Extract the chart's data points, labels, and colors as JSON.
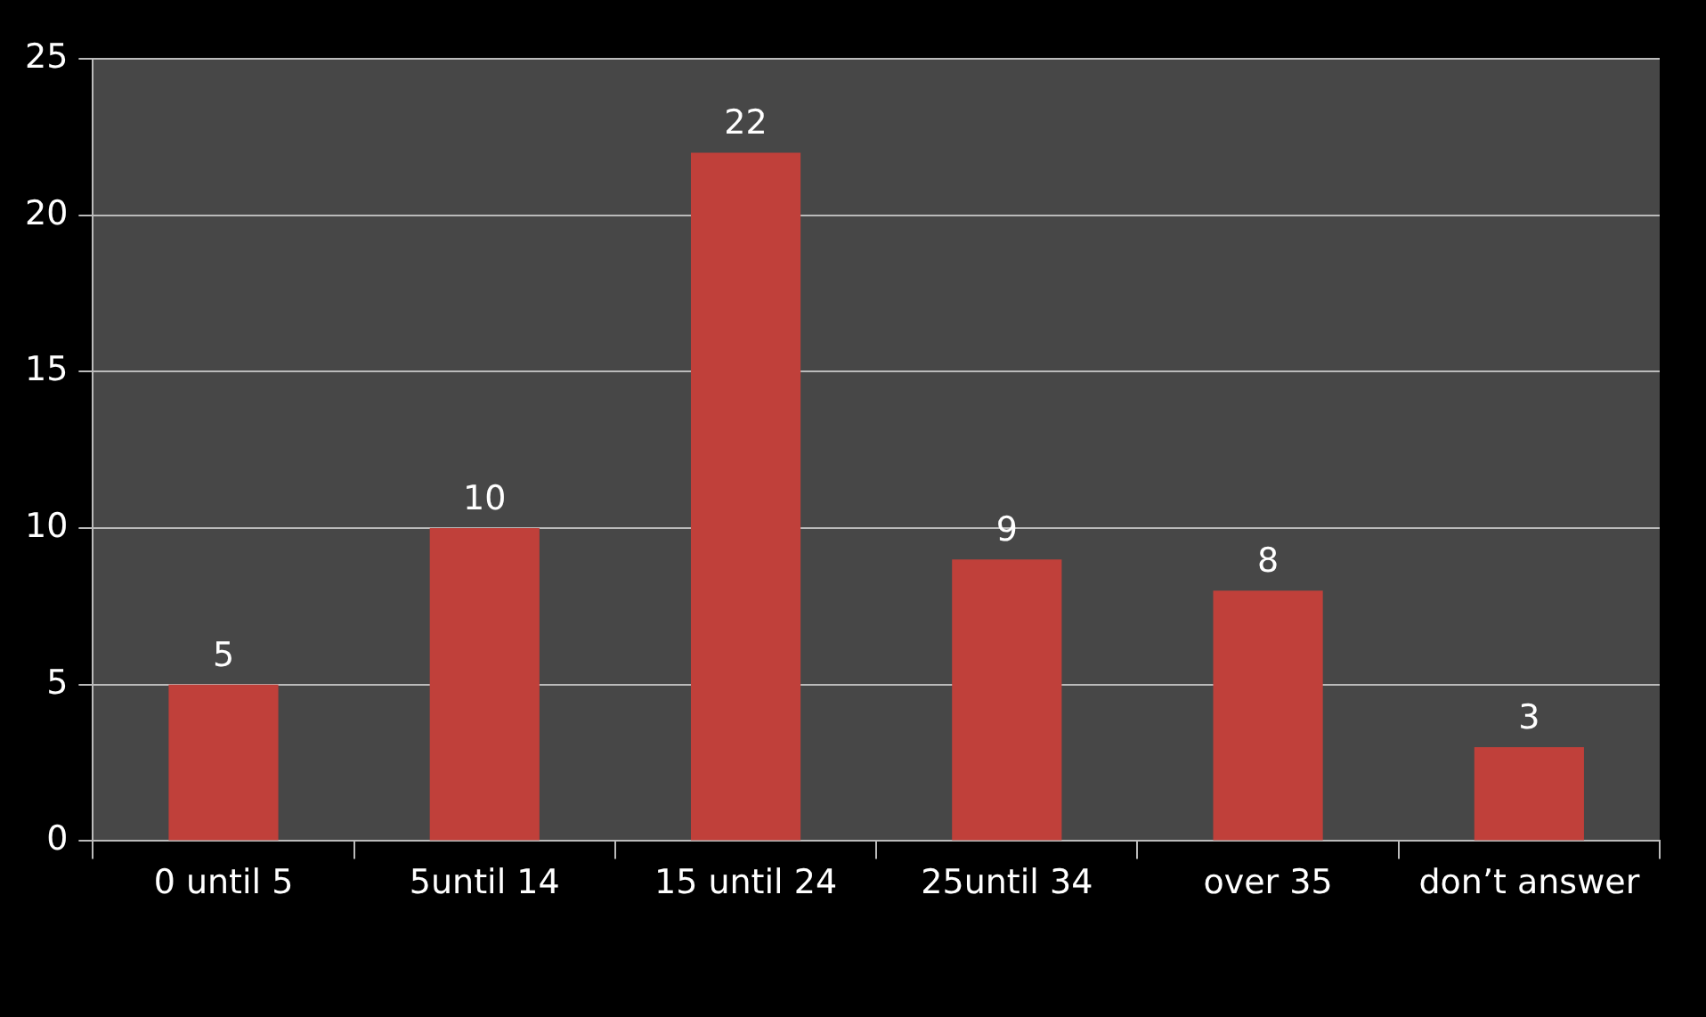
{
  "chart_data": {
    "type": "bar",
    "categories": [
      "0 until 5",
      "5until 14",
      "15 until 24",
      "25until 34",
      "over 35",
      "don’t answer"
    ],
    "values": [
      5,
      10,
      22,
      9,
      8,
      3
    ],
    "color": "#c0403a",
    "ylim": [
      0,
      25
    ],
    "yticks": [
      0,
      5,
      10,
      15,
      20,
      25
    ],
    "grid": "y",
    "data_labels": true
  }
}
